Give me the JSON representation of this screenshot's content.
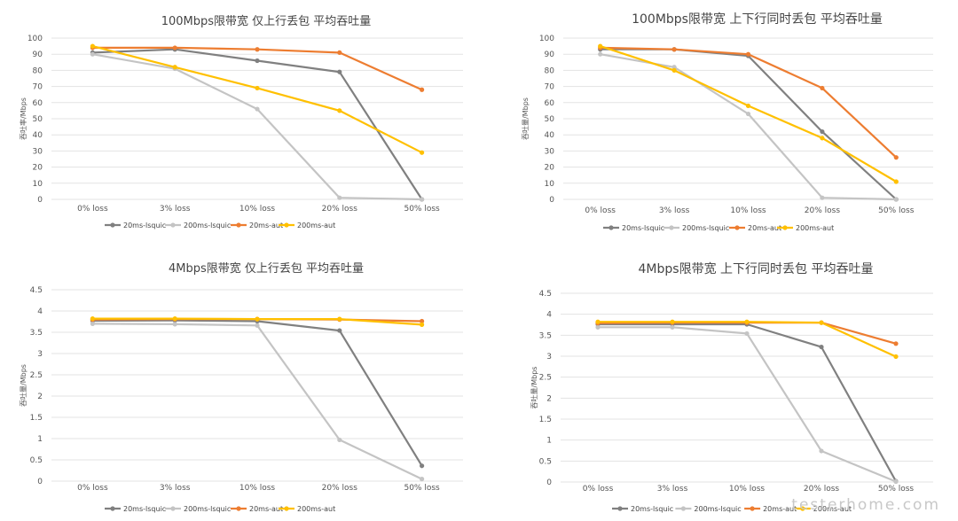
{
  "colors": {
    "20ms-lsquic": "#808080",
    "200ms-lsquic": "#c4c4c4",
    "20ms-aut": "#ed7d31",
    "200ms-aut": "#ffc000"
  },
  "chart_data": [
    {
      "type": "line",
      "title": "100Mbps限带宽 仅上行丢包 平均吞吐量",
      "ylabel": "吞吐率/Mbps",
      "xlabel": "",
      "categories": [
        "0% loss",
        "3% loss",
        "10% loss",
        "20% loss",
        "50% loss"
      ],
      "ylim": [
        0,
        100
      ],
      "yticks": [
        "0",
        "10",
        "20",
        "30",
        "40",
        "50",
        "60",
        "70",
        "80",
        "90",
        "100"
      ],
      "grid": true,
      "legend": "bottom",
      "series": [
        {
          "name": "20ms-lsquic",
          "values": [
            91,
            93,
            86,
            79,
            0
          ]
        },
        {
          "name": "200ms-lsquic",
          "values": [
            90,
            81,
            56,
            1,
            0
          ]
        },
        {
          "name": "20ms-aut",
          "values": [
            94,
            94,
            93,
            91,
            68
          ]
        },
        {
          "name": "200ms-aut",
          "values": [
            95,
            82,
            69,
            55,
            29
          ]
        }
      ]
    },
    {
      "type": "line",
      "title": "100Mbps限带宽 上下行同时丢包 平均吞吐量",
      "ylabel": "吞吐量/Mbps",
      "xlabel": "",
      "categories": [
        "0% loss",
        "3% loss",
        "10% loss",
        "20% loss",
        "50% loss"
      ],
      "ylim": [
        0,
        100
      ],
      "yticks": [
        "0",
        "10",
        "20",
        "30",
        "40",
        "50",
        "60",
        "70",
        "80",
        "90",
        "100"
      ],
      "grid": true,
      "legend": "bottom",
      "series": [
        {
          "name": "20ms-lsquic",
          "values": [
            93,
            93,
            89,
            42,
            0
          ]
        },
        {
          "name": "200ms-lsquic",
          "values": [
            90,
            82,
            53,
            1,
            0
          ]
        },
        {
          "name": "20ms-aut",
          "values": [
            94,
            93,
            90,
            69,
            26
          ]
        },
        {
          "name": "200ms-aut",
          "values": [
            95,
            80,
            58,
            38,
            11
          ]
        }
      ]
    },
    {
      "type": "line",
      "title": "4Mbps限带宽 仅上行丢包 平均吞吐量",
      "ylabel": "吞吐量/Mbps",
      "xlabel": "",
      "categories": [
        "0% loss",
        "3% loss",
        "10% loss",
        "20% loss",
        "50% loss"
      ],
      "ylim": [
        0,
        4.5
      ],
      "yticks": [
        "0",
        "0.5",
        "1",
        "1.5",
        "2",
        "2.5",
        "3",
        "3.5",
        "4",
        "4.5"
      ],
      "grid": true,
      "legend": "bottom",
      "series": [
        {
          "name": "20ms-lsquic",
          "values": [
            3.77,
            3.78,
            3.76,
            3.54,
            0.36
          ]
        },
        {
          "name": "200ms-lsquic",
          "values": [
            3.7,
            3.69,
            3.66,
            0.97,
            0.05
          ]
        },
        {
          "name": "20ms-aut",
          "values": [
            3.8,
            3.81,
            3.81,
            3.8,
            3.76
          ]
        },
        {
          "name": "200ms-aut",
          "values": [
            3.82,
            3.82,
            3.81,
            3.81,
            3.68
          ]
        }
      ]
    },
    {
      "type": "line",
      "title": "4Mbps限带宽 上下行同时丢包 平均吞吐量",
      "ylabel": "吞吐量/Mbps",
      "xlabel": "",
      "categories": [
        "0% loss",
        "3% loss",
        "10% loss",
        "20% loss",
        "50% loss"
      ],
      "ylim": [
        0,
        4.5
      ],
      "yticks": [
        "0",
        "0.5",
        "1",
        "1.5",
        "2",
        "2.5",
        "3",
        "3.5",
        "4",
        "4.5"
      ],
      "grid": true,
      "legend": "bottom",
      "series": [
        {
          "name": "20ms-lsquic",
          "values": [
            3.76,
            3.76,
            3.76,
            3.22,
            0.02
          ]
        },
        {
          "name": "200ms-lsquic",
          "values": [
            3.69,
            3.69,
            3.54,
            0.74,
            0.01
          ]
        },
        {
          "name": "20ms-aut",
          "values": [
            3.79,
            3.8,
            3.8,
            3.8,
            3.3
          ]
        },
        {
          "name": "200ms-aut",
          "values": [
            3.82,
            3.82,
            3.82,
            3.8,
            2.99
          ]
        }
      ]
    }
  ],
  "watermark": "testerhome.com"
}
